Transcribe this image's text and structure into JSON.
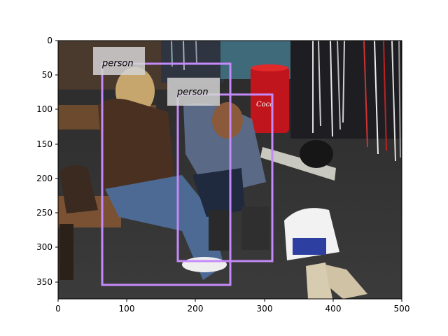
{
  "axes": {
    "x_ticks": [
      "0",
      "100",
      "200",
      "300",
      "400",
      "500"
    ],
    "y_ticks": [
      "0",
      "50",
      "100",
      "150",
      "200",
      "250",
      "300",
      "350"
    ]
  },
  "detections": [
    {
      "label": "person",
      "color": "#c58af9"
    },
    {
      "label": "person",
      "color": "#c58af9"
    }
  ],
  "scene": {
    "description_icons": [
      "bench",
      "bag-icon",
      "soda-cooler",
      "ski-rack",
      "helmet",
      "shopping-bag",
      "sneakers"
    ]
  }
}
